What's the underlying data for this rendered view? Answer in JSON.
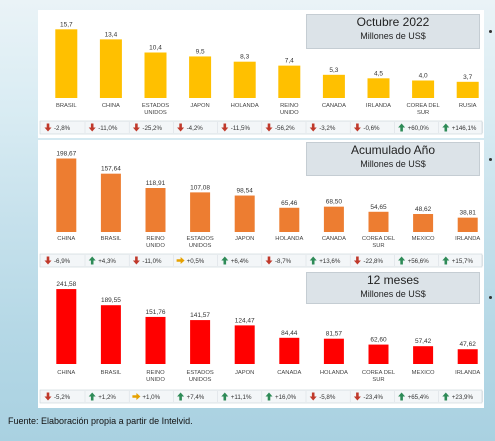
{
  "charts": [
    {
      "key": "oct",
      "title": "Octubre 2022",
      "subtitle": "Millones de US$",
      "color": "#ffc000",
      "chart_data": {
        "type": "bar",
        "title": "Octubre 2022",
        "subtitle": "Millones de US$",
        "categories": [
          "BRASIL",
          "CHINA",
          "ESTADOS UNIDOS",
          "JAPON",
          "HOLANDA",
          "REINO UNIDO",
          "CANADA",
          "IRLANDA",
          "COREA DEL SUR",
          "RUSIA"
        ],
        "values": [
          15.7,
          13.4,
          10.4,
          9.5,
          8.3,
          7.4,
          5.3,
          4.5,
          4.0,
          3.7
        ],
        "value_labels": [
          "15,7",
          "13,4",
          "10,4",
          "9,5",
          "8,3",
          "7,4",
          "5,3",
          "4,5",
          "4,0",
          "3,7"
        ],
        "changes": [
          "-2,8%",
          "-11,0%",
          "-25,2%",
          "-4,2%",
          "-11,5%",
          "-56,2%",
          "-3,2%",
          "-0,6%",
          "+60,0%",
          "+146,1%"
        ],
        "change_dirs": [
          "down",
          "down",
          "down",
          "down",
          "down",
          "down",
          "down",
          "down",
          "up",
          "up"
        ],
        "ylim": [
          0,
          16
        ],
        "grid": false
      }
    },
    {
      "key": "acum",
      "title": "Acumulado Año",
      "subtitle": "Millones de US$",
      "color": "#ed7d31",
      "chart_data": {
        "type": "bar",
        "title": "Acumulado Año",
        "subtitle": "Millones de US$",
        "categories": [
          "CHINA",
          "BRASIL",
          "REINO UNIDO",
          "ESTADOS UNIDOS",
          "JAPON",
          "HOLANDA",
          "CANADA",
          "COREA DEL SUR",
          "MEXICO",
          "IRLANDA"
        ],
        "values": [
          198.67,
          157.64,
          118.91,
          107.08,
          98.54,
          65.46,
          68.5,
          54.65,
          48.62,
          38.81
        ],
        "value_labels": [
          "198,67",
          "157,64",
          "118,91",
          "107,08",
          "98,54",
          "65,46",
          "68,50",
          "54,65",
          "48,62",
          "38,81"
        ],
        "changes": [
          "-6,9%",
          "+4,3%",
          "-11,0%",
          "+0,5%",
          "+6,4%",
          "-8,7%",
          "+13,6%",
          "-22,8%",
          "+56,6%",
          "+15,7%"
        ],
        "change_dirs": [
          "down",
          "up",
          "down",
          "flat",
          "up",
          "down",
          "up",
          "down",
          "up",
          "up"
        ],
        "ylim": [
          0,
          200
        ],
        "grid": false
      }
    },
    {
      "key": "doce",
      "title": "12 meses",
      "subtitle": "Millones de US$",
      "color": "#ff0000",
      "chart_data": {
        "type": "bar",
        "title": "12 meses",
        "subtitle": "Millones de US$",
        "categories": [
          "CHINA",
          "BRASIL",
          "REINO UNIDO",
          "ESTADOS UNIDOS",
          "JAPON",
          "CANADA",
          "HOLANDA",
          "COREA DEL SUR",
          "MEXICO",
          "IRLANDA"
        ],
        "values": [
          241.58,
          189.55,
          151.76,
          141.57,
          124.47,
          84.44,
          81.57,
          62.6,
          57.42,
          47.62
        ],
        "value_labels": [
          "241,58",
          "189,55",
          "151,76",
          "141,57",
          "124,47",
          "84,44",
          "81,57",
          "62,60",
          "57,42",
          "47,62"
        ],
        "changes": [
          "-5,2%",
          "+1,2%",
          "+1,0%",
          "+7,4%",
          "+11,1%",
          "+16,0%",
          "-5,8%",
          "-23,4%",
          "+65,4%",
          "+23,9%"
        ],
        "change_dirs": [
          "down",
          "up",
          "flat",
          "up",
          "up",
          "up",
          "down",
          "down",
          "up",
          "up"
        ],
        "ylim": [
          0,
          245
        ],
        "grid": false
      }
    }
  ],
  "source": "Fuente: Elaboración propia a partir de Intelvid.",
  "colors": {
    "up": "#2e8b57",
    "down": "#c0392b",
    "flat": "#e6a100",
    "title_bg": "#dce3e8"
  },
  "icons": {
    "up": "arrow-up-icon",
    "down": "arrow-down-icon",
    "flat": "arrow-right-icon"
  }
}
